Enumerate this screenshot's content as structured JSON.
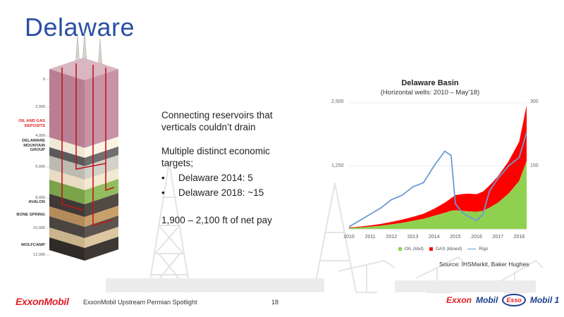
{
  "slide": {
    "title": "Delaware",
    "page_number": "18",
    "footer_text": "ExxonMobil Upstream Permian Spotlight",
    "footer_logo": "ExxonMobil"
  },
  "column": {
    "depths": [
      "0",
      "2,000",
      "4,000",
      "6,000",
      "8,000",
      "10,000",
      "12,000"
    ],
    "zones": [
      {
        "label": "OIL AND GAS DEPOSITS",
        "color": "#e01e26"
      },
      {
        "label": "DELAWARE MOUNTAIN GROUP",
        "color": "#333333"
      },
      {
        "label": "AVALON",
        "color": "#333333"
      },
      {
        "label": "BONE SPRING",
        "color": "#333333"
      },
      {
        "label": "WOLFCAMP",
        "color": "#333333"
      }
    ]
  },
  "text": {
    "para1": "Connecting reservoirs that verticals couldn’t drain",
    "para2": "Multiple distinct economic targets;",
    "bullets": [
      "Delaware 2014:  5",
      "Delaware 2018:  ~15"
    ],
    "para3": "1,900 – 2,100 ft of net pay"
  },
  "chart_data": {
    "type": "area",
    "title": "Delaware Basin",
    "subtitle": "(Horizontal wells: 2010 – May’18)",
    "x_ticks": [
      "2010",
      "2011",
      "2012",
      "2013",
      "2014",
      "2015",
      "2016",
      "2017",
      "2018"
    ],
    "y_left_ticks": [
      "2,500",
      "1,250"
    ],
    "y_left_range": [
      0,
      2500
    ],
    "y_right_ticks": [
      "300",
      "150"
    ],
    "y_right_range": [
      0,
      300
    ],
    "x": [
      2010.0,
      2010.5,
      2011.0,
      2011.5,
      2012.0,
      2012.5,
      2013.0,
      2013.5,
      2014.0,
      2014.5,
      2014.8,
      2015.0,
      2015.3,
      2015.6,
      2016.0,
      2016.3,
      2016.6,
      2017.0,
      2017.5,
      2018.0,
      2018.35
    ],
    "series": [
      {
        "name": "OIL (kbd)",
        "color": "#8fd14f",
        "axis": "left",
        "values": [
          20,
          30,
          45,
          65,
          90,
          120,
          160,
          200,
          260,
          320,
          360,
          370,
          360,
          350,
          340,
          360,
          420,
          520,
          700,
          950,
          1350
        ]
      },
      {
        "name": "GAS (kboed)",
        "color": "#ff0000",
        "axis": "left",
        "values": [
          10,
          15,
          25,
          35,
          50,
          65,
          80,
          100,
          140,
          200,
          250,
          300,
          330,
          350,
          350,
          380,
          440,
          520,
          640,
          780,
          1100
        ]
      },
      {
        "name": "Rigs",
        "color": "#6b9bd2",
        "axis": "right",
        "values": [
          5,
          20,
          35,
          50,
          70,
          80,
          100,
          110,
          150,
          185,
          175,
          60,
          40,
          30,
          20,
          35,
          90,
          120,
          150,
          170,
          230
        ]
      }
    ],
    "legend_position": "bottom",
    "grid": "horizontal"
  },
  "source": "Source:  IHSMarkit, Baker Hughes",
  "brands": [
    "Exxon",
    "Mobil",
    "Esso",
    "Mobil 1"
  ]
}
